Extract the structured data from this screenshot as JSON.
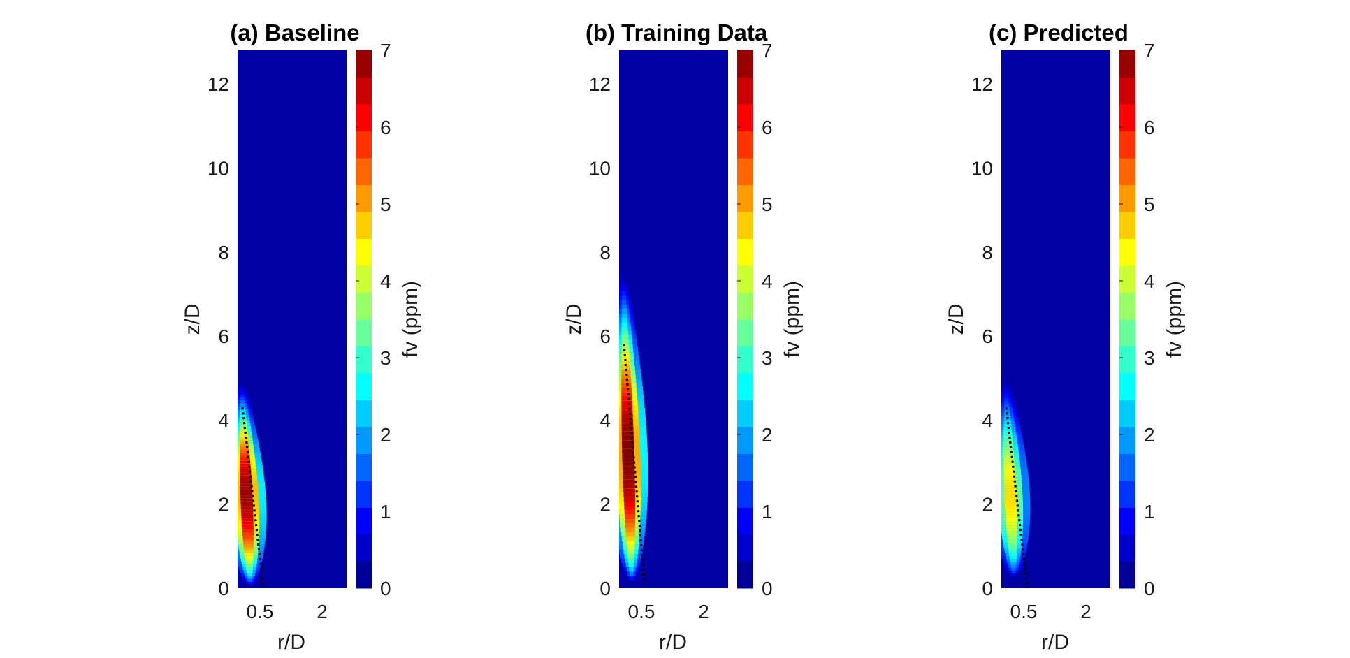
{
  "chart_data": [
    {
      "type": "heatmap",
      "title": "(a) Baseline",
      "xlabel": "r/D",
      "ylabel": "z/D",
      "xticks": [
        "0.5",
        "2"
      ],
      "yticks": [
        "0",
        "2",
        "4",
        "6",
        "8",
        "10",
        "12"
      ],
      "ylim": [
        0,
        12.8
      ],
      "colorbar": {
        "label": "fv (ppm)",
        "range": [
          0,
          7
        ],
        "ticks": [
          "0",
          "1",
          "2",
          "3",
          "4",
          "5",
          "6",
          "7"
        ],
        "colormap": "jet",
        "levels": 20
      },
      "plume": {
        "peak_fv": 6.8,
        "z_start": 0.1,
        "z_peak": 2.3,
        "z_end": 4.9
      },
      "dotted_line": {
        "z_top": 4.3,
        "z_bottom": 0
      }
    },
    {
      "type": "heatmap",
      "title": "(b) Training Data",
      "xlabel": "r/D",
      "ylabel": "z/D",
      "xticks": [
        "0.5",
        "2"
      ],
      "yticks": [
        "0",
        "2",
        "4",
        "6",
        "8",
        "10",
        "12"
      ],
      "ylim": [
        0,
        12.8
      ],
      "colorbar": {
        "label": "fv (ppm)",
        "range": [
          0,
          7
        ],
        "ticks": [
          "0",
          "1",
          "2",
          "3",
          "4",
          "5",
          "6",
          "7"
        ],
        "colormap": "jet",
        "levels": 20
      },
      "plume": {
        "peak_fv": 7.0,
        "z_start": 0.2,
        "z_peak": 3.2,
        "z_end": 7.5
      },
      "dotted_line": {
        "z_top": 5.8,
        "z_bottom": 0
      }
    },
    {
      "type": "heatmap",
      "title": "(c) Predicted",
      "xlabel": "r/D",
      "ylabel": "z/D",
      "xticks": [
        "0.5",
        "2"
      ],
      "yticks": [
        "0",
        "2",
        "4",
        "6",
        "8",
        "10",
        "12"
      ],
      "ylim": [
        0,
        12.8
      ],
      "colorbar": {
        "label": "fv (ppm)",
        "range": [
          0,
          7
        ],
        "ticks": [
          "0",
          "1",
          "2",
          "3",
          "4",
          "5",
          "6",
          "7"
        ],
        "colormap": "jet",
        "levels": 20
      },
      "plume": {
        "peak_fv": 4.6,
        "z_start": 0.3,
        "z_peak": 2.2,
        "z_end": 5.0
      },
      "dotted_line": {
        "z_top": 4.3,
        "z_bottom": 0
      }
    }
  ]
}
